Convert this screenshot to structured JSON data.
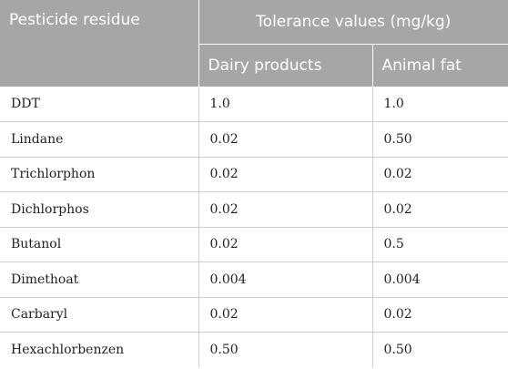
{
  "header": {
    "col1": "Pesticide residue",
    "group": "Tolerance values (mg/kg)",
    "col2": "Dairy products",
    "col3": "Animal fat"
  },
  "rows": [
    {
      "name": "DDT",
      "dairy": "1.0",
      "fat": "1.0"
    },
    {
      "name": "Lindane",
      "dairy": "0.02",
      "fat": "0.50"
    },
    {
      "name": "Trichlorphon",
      "dairy": "0.02",
      "fat": "0.02"
    },
    {
      "name": "Dichlorphos",
      "dairy": "0.02",
      "fat": "0.02"
    },
    {
      "name": "Butanol",
      "dairy": "0.02",
      "fat": "0.5"
    },
    {
      "name": "Dimethoat",
      "dairy": "0.004",
      "fat": "0.004"
    },
    {
      "name": "Carbaryl",
      "dairy": "0.02",
      "fat": "0.02"
    },
    {
      "name": "Hexachlorbenzen",
      "dairy": "0.50",
      "fat": "0.50"
    }
  ]
}
